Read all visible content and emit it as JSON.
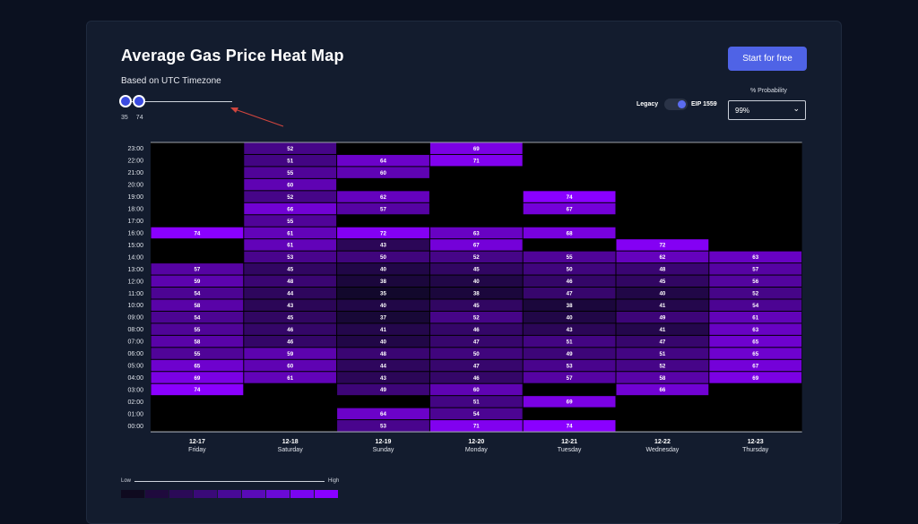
{
  "header": {
    "title": "Average Gas Price Heat Map",
    "subtitle": "Based on UTC Timezone",
    "cta_label": "Start for free"
  },
  "slider": {
    "min_label": "35",
    "max_label": "74",
    "min": 35,
    "max": 74
  },
  "toggle": {
    "left_label": "Legacy",
    "right_label": "EIP 1559",
    "selected": "EIP 1559"
  },
  "probability": {
    "label": "% Probability",
    "value": "99%"
  },
  "legend": {
    "low_label": "Low",
    "high_label": "High"
  },
  "colors": {
    "scale": [
      "#0f0a1f",
      "#1f0a3d",
      "#2b0a57",
      "#3a0a78",
      "#480a96",
      "#5a0bb8",
      "#6a0ad6",
      "#7a05f0",
      "#8a00ff"
    ],
    "background": "#000000",
    "accent": "#4f63e6"
  },
  "chart_data": {
    "type": "heatmap",
    "x": [
      {
        "date": "12-17",
        "day": "Friday"
      },
      {
        "date": "12-18",
        "day": "Saturday"
      },
      {
        "date": "12-19",
        "day": "Sunday"
      },
      {
        "date": "12-20",
        "day": "Monday"
      },
      {
        "date": "12-21",
        "day": "Tuesday"
      },
      {
        "date": "12-22",
        "day": "Wednesday"
      },
      {
        "date": "12-23",
        "day": "Thursday"
      }
    ],
    "y": [
      "23:00",
      "22:00",
      "21:00",
      "20:00",
      "19:00",
      "18:00",
      "17:00",
      "16:00",
      "15:00",
      "14:00",
      "13:00",
      "12:00",
      "11:00",
      "10:00",
      "09:00",
      "08:00",
      "07:00",
      "06:00",
      "05:00",
      "04:00",
      "03:00",
      "02:00",
      "01:00",
      "00:00"
    ],
    "values": [
      [
        null,
        52,
        null,
        69,
        null,
        null,
        null
      ],
      [
        null,
        51,
        64,
        71,
        null,
        null,
        null
      ],
      [
        null,
        55,
        60,
        null,
        null,
        null,
        null
      ],
      [
        null,
        60,
        null,
        null,
        null,
        null,
        null
      ],
      [
        null,
        52,
        62,
        null,
        74,
        null,
        null
      ],
      [
        null,
        66,
        57,
        null,
        67,
        null,
        null
      ],
      [
        null,
        55,
        null,
        null,
        null,
        null,
        null
      ],
      [
        74,
        61,
        72,
        63,
        68,
        null,
        null
      ],
      [
        null,
        61,
        43,
        67,
        null,
        72,
        null
      ],
      [
        null,
        53,
        50,
        52,
        55,
        62,
        63
      ],
      [
        57,
        45,
        40,
        45,
        50,
        48,
        57
      ],
      [
        59,
        48,
        38,
        40,
        46,
        45,
        56
      ],
      [
        54,
        44,
        35,
        38,
        47,
        40,
        52
      ],
      [
        58,
        43,
        40,
        45,
        38,
        41,
        54
      ],
      [
        54,
        45,
        37,
        52,
        40,
        49,
        61
      ],
      [
        55,
        46,
        41,
        46,
        43,
        41,
        63
      ],
      [
        58,
        46,
        40,
        47,
        51,
        47,
        65
      ],
      [
        55,
        59,
        48,
        50,
        49,
        51,
        65
      ],
      [
        65,
        60,
        44,
        47,
        53,
        52,
        67
      ],
      [
        69,
        61,
        43,
        46,
        57,
        58,
        69
      ],
      [
        74,
        null,
        49,
        60,
        null,
        66,
        null
      ],
      [
        null,
        null,
        null,
        51,
        69,
        null,
        null
      ],
      [
        null,
        null,
        64,
        54,
        null,
        null,
        null
      ],
      [
        null,
        null,
        53,
        71,
        74,
        null,
        null
      ]
    ],
    "vmin": 35,
    "vmax": 74
  }
}
